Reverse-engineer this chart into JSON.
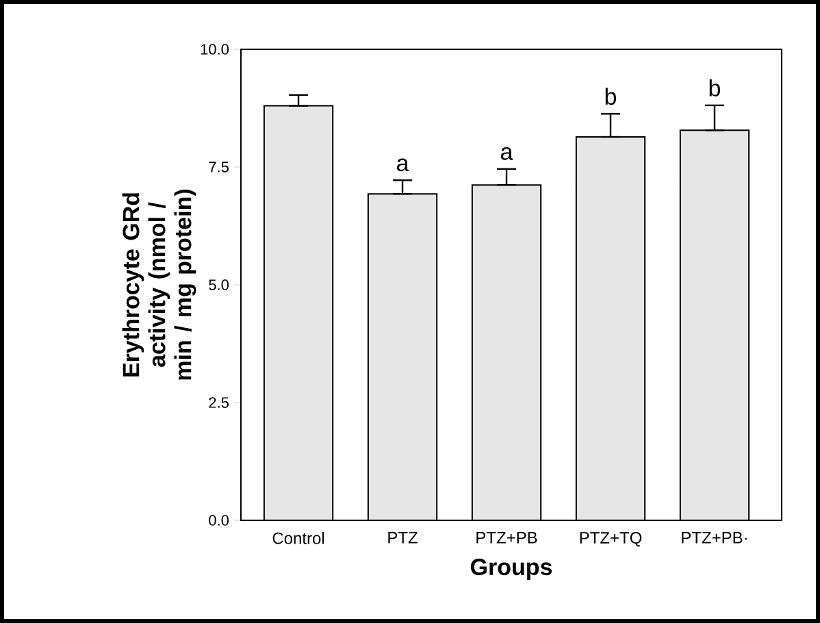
{
  "chart_data": {
    "type": "bar",
    "xlabel": "Groups",
    "ylabel": "Erythrocyte GRd activity (nmol / min / mg protein)",
    "categories": [
      "Control",
      "PTZ",
      "PTZ+PB",
      "PTZ+TQ",
      "PTZ+PB·"
    ],
    "values": [
      8.8,
      6.93,
      7.12,
      8.14,
      8.28
    ],
    "errors": [
      [
        8.8,
        9.03
      ],
      [
        6.93,
        7.22
      ],
      [
        7.12,
        7.46
      ],
      [
        8.14,
        8.63
      ],
      [
        8.28,
        8.81
      ]
    ],
    "color": "#e6e6e6",
    "ylim": [
      0,
      10
    ],
    "yticks": [
      {
        "value": 0,
        "label": "0.0"
      },
      {
        "value": 2.5,
        "label": "2.5"
      },
      {
        "value": 5,
        "label": "5.0"
      },
      {
        "value": 7.5,
        "label": "7.5"
      },
      {
        "value": 10,
        "label": "10.0"
      }
    ],
    "value_labels": [
      null,
      "a",
      "a",
      "b",
      "b"
    ]
  }
}
